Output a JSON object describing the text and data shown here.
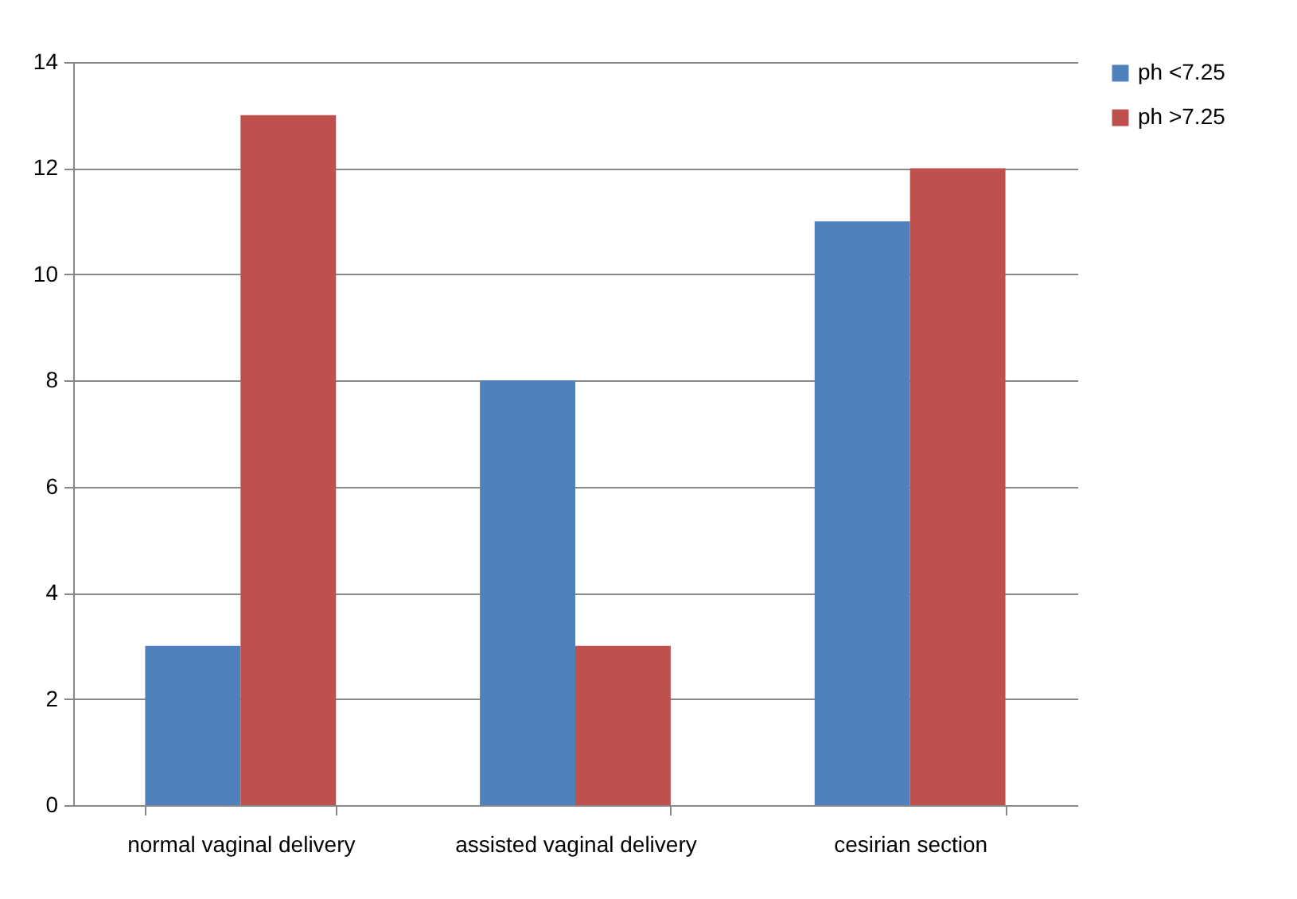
{
  "chart_data": {
    "type": "bar",
    "categories": [
      "normal vaginal delivery",
      "assisted vaginal delivery",
      "cesirian section"
    ],
    "series": [
      {
        "name": "ph <7.25",
        "color": "#4f81bd",
        "values": [
          3,
          8,
          11
        ]
      },
      {
        "name": "ph >7.25",
        "color": "#c0504d",
        "values": [
          13,
          3,
          12
        ]
      }
    ],
    "ylim": [
      0,
      14
    ],
    "yticks": [
      0,
      2,
      4,
      6,
      8,
      10,
      12,
      14
    ],
    "grid": "y",
    "legend": "right"
  }
}
